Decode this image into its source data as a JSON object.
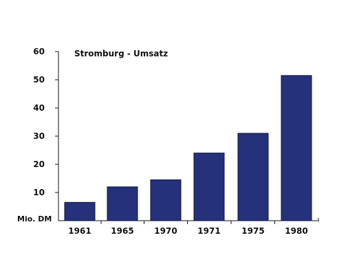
{
  "chart_data": {
    "type": "bar",
    "title": "Stromburg - Umsatz",
    "ylabel": "Mio. DM",
    "categories": [
      "1961",
      "1965",
      "1970",
      "1971",
      "1975",
      "1980"
    ],
    "values": [
      6.5,
      12,
      14.5,
      24,
      31,
      51.5
    ],
    "ylim": [
      0,
      60
    ],
    "yticks": [
      10,
      20,
      30,
      40,
      50,
      60
    ],
    "grid": false,
    "bar_color": "#25317a"
  }
}
